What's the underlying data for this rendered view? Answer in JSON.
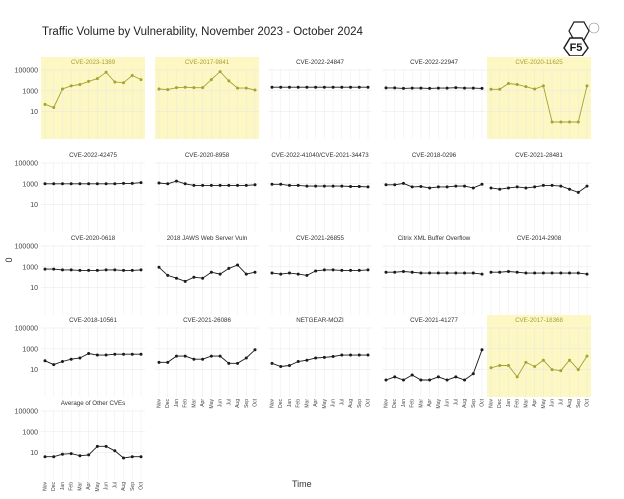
{
  "title": "Traffic Volume by Vulnerability, November 2023 - October 2024",
  "logo_text": "F5",
  "y_axis_label": "0",
  "x_axis_label": "Time",
  "colors": {
    "highlight_bg": "#fdf7c4",
    "highlight_line": "#a3a332",
    "normal_line": "#1a1a1a",
    "grid": "#e6e6e6"
  },
  "chart_data": {
    "type": "line",
    "layout": "small-multiples",
    "y_scale": "log",
    "ylim": [
      1,
      100000
    ],
    "y_ticks": [
      "100000",
      "1000",
      "10"
    ],
    "months": [
      "Nov",
      "Dec",
      "Jan",
      "Feb",
      "Mar",
      "Apr",
      "May",
      "Jun",
      "Jul",
      "Aug",
      "Sep",
      "Oct"
    ],
    "panels": [
      {
        "name": "CVE-2023-1389",
        "highlight": true,
        "values": [
          50,
          25,
          1500,
          3000,
          4000,
          8000,
          15000,
          60000,
          7000,
          6000,
          30000,
          12000
        ]
      },
      {
        "name": "CVE-2017-9841",
        "highlight": true,
        "values": [
          1500,
          1300,
          2000,
          2200,
          2000,
          2000,
          12000,
          70000,
          9000,
          1800,
          1800,
          1200
        ]
      },
      {
        "name": "CVE-2022-24847",
        "highlight": false,
        "values": [
          2200,
          2200,
          2200,
          2200,
          2200,
          2200,
          2200,
          2200,
          2200,
          2200,
          2200,
          2200
        ]
      },
      {
        "name": "CVE-2022-22947",
        "highlight": false,
        "values": [
          1900,
          1900,
          1700,
          1800,
          1800,
          1700,
          1800,
          1800,
          2000,
          1800,
          1800,
          1700
        ]
      },
      {
        "name": "CVE-2020-11625",
        "highlight": true,
        "values": [
          1400,
          1400,
          5000,
          4000,
          2500,
          1500,
          3000,
          1,
          1,
          1,
          1,
          3000
        ]
      },
      {
        "name": "CVE-2022-42475",
        "highlight": false,
        "values": [
          1000,
          1000,
          1000,
          1000,
          1000,
          1000,
          1000,
          1000,
          1000,
          1100,
          1100,
          1300
        ]
      },
      {
        "name": "CVE-2020-8958",
        "highlight": false,
        "values": [
          1200,
          1000,
          1800,
          1000,
          700,
          700,
          700,
          700,
          700,
          700,
          700,
          800
        ]
      },
      {
        "name": "CVE-2022-41040/CVE-2021-34473",
        "highlight": false,
        "values": [
          900,
          900,
          700,
          700,
          600,
          600,
          600,
          600,
          600,
          550,
          550,
          500
        ]
      },
      {
        "name": "CVE-2018-0296",
        "highlight": false,
        "values": [
          800,
          800,
          1100,
          500,
          550,
          400,
          500,
          500,
          600,
          600,
          400,
          900
        ]
      },
      {
        "name": "CVE-2021-28481",
        "highlight": false,
        "values": [
          400,
          300,
          400,
          500,
          400,
          500,
          700,
          700,
          600,
          300,
          150,
          600
        ]
      },
      {
        "name": "CVE-2020-0618",
        "highlight": false,
        "values": [
          600,
          600,
          500,
          500,
          450,
          450,
          450,
          500,
          500,
          450,
          450,
          500
        ]
      },
      {
        "name": "2018 JAWS Web Server Vuln",
        "highlight": false,
        "values": [
          900,
          150,
          80,
          40,
          100,
          80,
          300,
          200,
          700,
          1500,
          200,
          300
        ]
      },
      {
        "name": "CVE-2021-26855",
        "highlight": false,
        "values": [
          250,
          200,
          250,
          200,
          150,
          400,
          500,
          500,
          450,
          450,
          450,
          500
        ]
      },
      {
        "name": "Citrix XML Buffer Overflow",
        "highlight": false,
        "values": [
          300,
          300,
          350,
          300,
          250,
          250,
          250,
          250,
          250,
          250,
          250,
          200
        ]
      },
      {
        "name": "CVE-2014-2908",
        "highlight": false,
        "values": [
          300,
          300,
          350,
          300,
          250,
          250,
          250,
          250,
          250,
          250,
          250,
          200
        ]
      },
      {
        "name": "CVE-2018-10561",
        "highlight": false,
        "values": [
          70,
          30,
          60,
          100,
          130,
          350,
          250,
          250,
          300,
          300,
          300,
          300
        ]
      },
      {
        "name": "CVE-2021-26086",
        "highlight": false,
        "values": [
          50,
          50,
          200,
          200,
          100,
          100,
          200,
          200,
          40,
          40,
          130,
          800
        ]
      },
      {
        "name": "NETGEAR-MOZI",
        "highlight": false,
        "values": [
          40,
          20,
          25,
          60,
          80,
          130,
          150,
          180,
          250,
          250,
          250,
          250
        ]
      },
      {
        "name": "CVE-2021-41277",
        "highlight": false,
        "values": [
          1,
          2,
          1,
          3,
          1,
          1,
          2,
          1,
          2,
          1,
          4,
          800
        ]
      },
      {
        "name": "CVE-2017-18368",
        "highlight": true,
        "values": [
          15,
          25,
          25,
          2,
          50,
          20,
          80,
          10,
          8,
          80,
          10,
          200
        ]
      },
      {
        "name": "Average of Other CVEs",
        "highlight": false,
        "values": [
          4,
          4,
          7,
          8,
          5,
          6,
          40,
          40,
          15,
          3,
          4,
          4
        ]
      }
    ]
  }
}
